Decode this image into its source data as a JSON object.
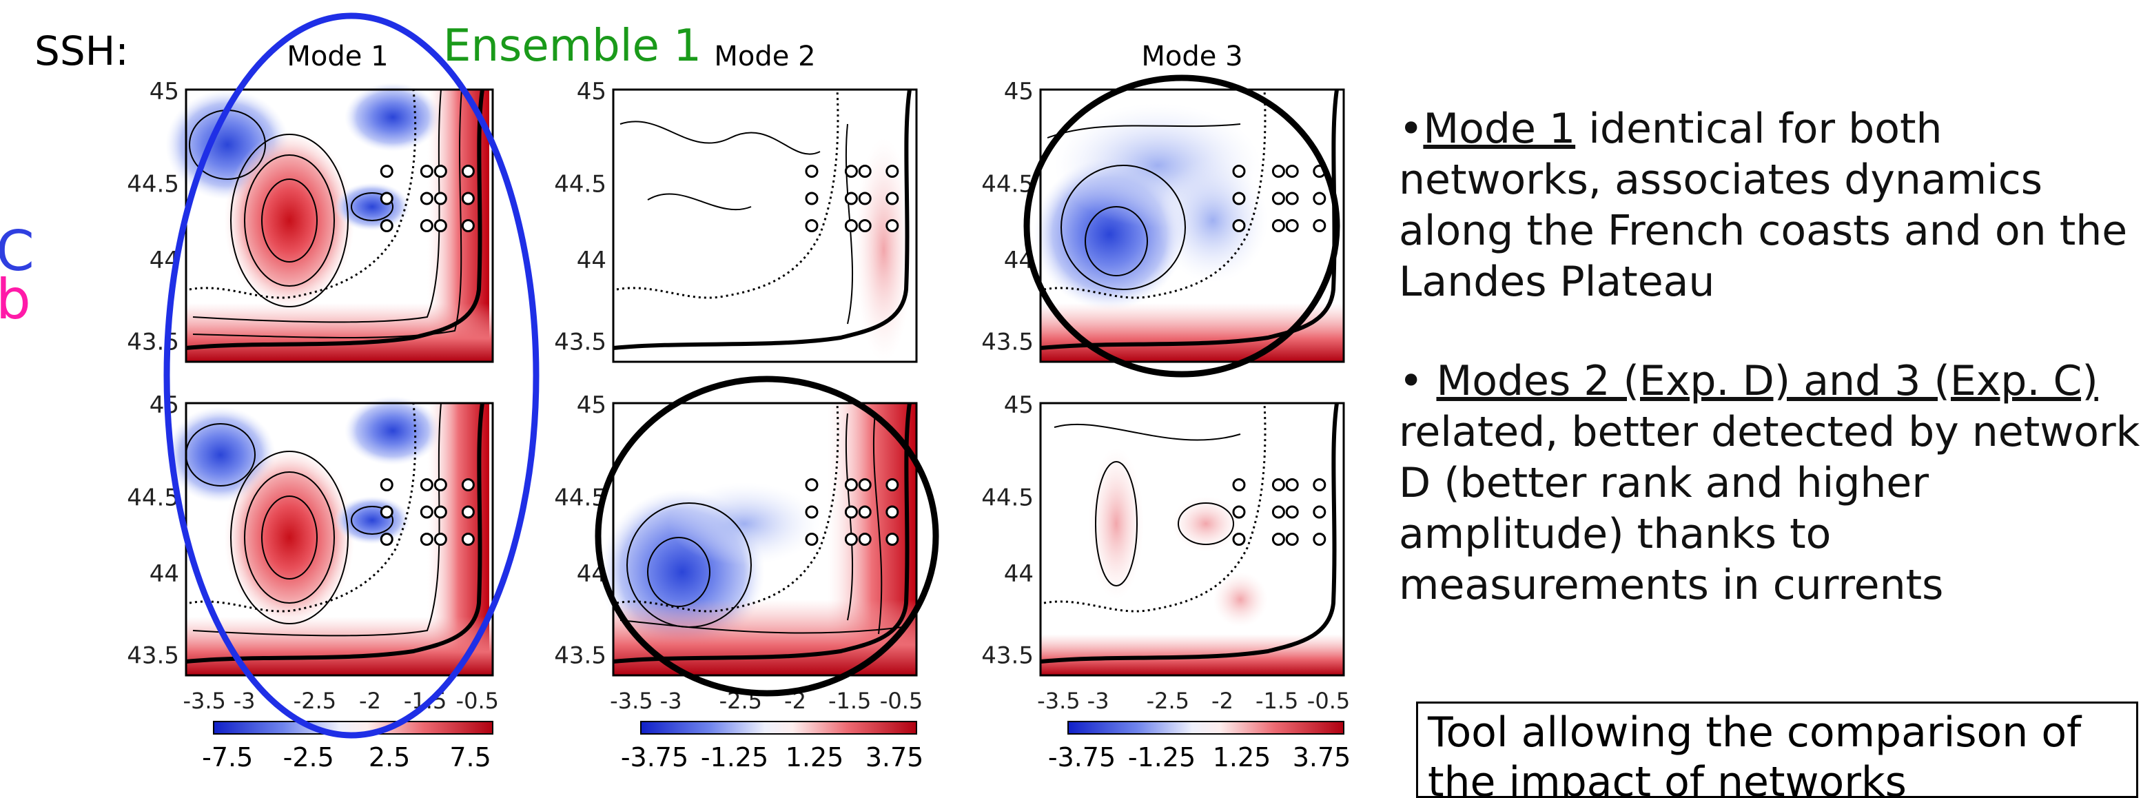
{
  "figure": {
    "field_label": "SSH:",
    "ensemble_label": "Ensemble 1",
    "edge_labels": [
      "C",
      "b"
    ],
    "panel_titles": [
      "Mode 1",
      "Mode 2",
      "Mode 3"
    ],
    "y_ticks": [
      "45",
      "44.5",
      "44",
      "43.5"
    ],
    "x_ticks": [
      "-3.5",
      "-3",
      "-2.5",
      "-2",
      "-1.5",
      "-0.5"
    ],
    "colorbar_labels": [
      [
        "-7.5",
        "-2.5",
        "2.5",
        "7.5"
      ],
      [
        "-3.75",
        "-1.25",
        "1.25",
        "3.75"
      ],
      [
        "-3.75",
        "-1.25",
        "1.25",
        "3.75"
      ]
    ],
    "colors": {
      "negative": "#2b45d8",
      "positive": "#d8101a",
      "ensemble_ring": "#1f2fe6",
      "highlight_ring": "#000000",
      "ensemble_text": "#1a9a1a"
    }
  },
  "bullets": [
    {
      "marker": "•",
      "lead": "Mode 1",
      "rest": " identical for both networks, associates dynamics along the French coasts and on the Landes Plateau"
    },
    {
      "marker": "• ",
      "lead": "Modes 2 (Exp. D) and 3 (Exp. C)",
      "rest": " related, better detected by network D (better rank and higher amplitude) thanks to measurements in currents"
    }
  ],
  "conclusion": {
    "pre": "Tool allowing the ",
    "bold": "comparison",
    "post": " of the impact of networks"
  }
}
